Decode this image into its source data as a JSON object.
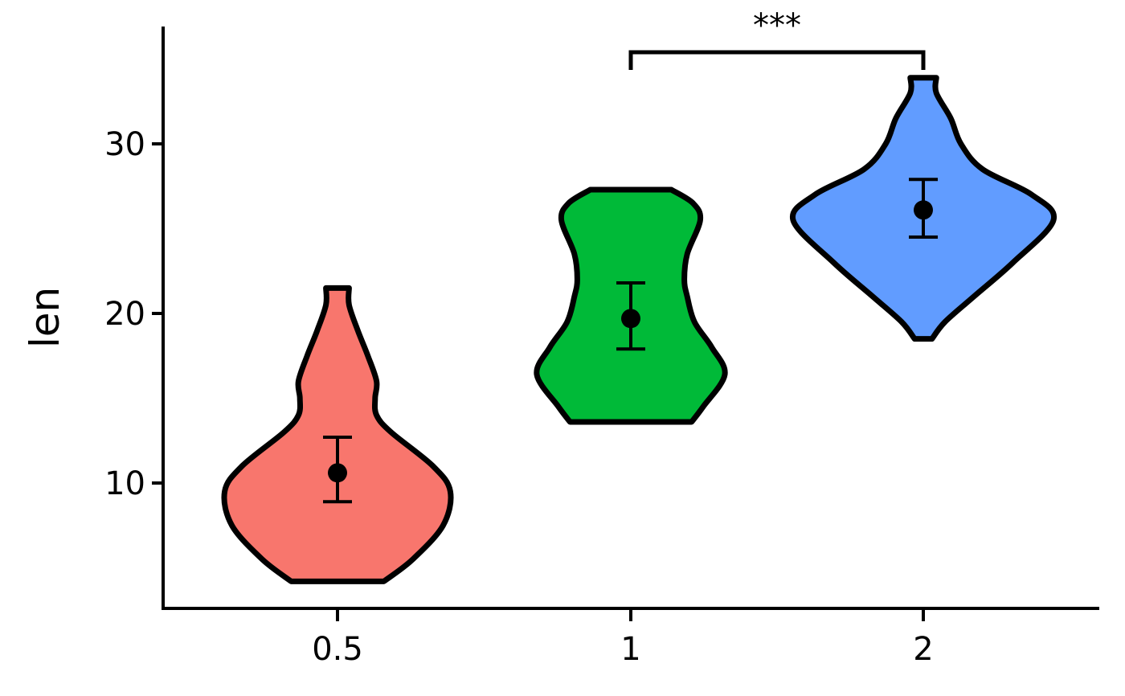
{
  "chart_data": {
    "type": "violin",
    "xlabel": "",
    "ylabel": "len",
    "ylim": [
      2.5,
      37
    ],
    "y_ticks": [
      10,
      20,
      30
    ],
    "categories": [
      "0.5",
      "1",
      "2"
    ],
    "colors": [
      "#F8766D",
      "#00BA38",
      "#619CFF"
    ],
    "groups": [
      {
        "category": "0.5",
        "fill": "#F8766D",
        "min": 4.2,
        "max": 21.5,
        "mean": 10.6,
        "error_low": 8.9,
        "error_high": 12.7,
        "density_profile": [
          [
            4.2,
            0.32
          ],
          [
            5.5,
            0.52
          ],
          [
            7.5,
            0.73
          ],
          [
            9.5,
            0.78
          ],
          [
            11.0,
            0.66
          ],
          [
            13.0,
            0.37
          ],
          [
            14.0,
            0.27
          ],
          [
            15.0,
            0.26
          ],
          [
            16.0,
            0.27
          ],
          [
            17.5,
            0.21
          ],
          [
            19.0,
            0.14
          ],
          [
            20.5,
            0.08
          ],
          [
            21.5,
            0.08
          ]
        ]
      },
      {
        "category": "1",
        "fill": "#00BA38",
        "min": 13.6,
        "max": 27.3,
        "mean": 19.7,
        "error_low": 17.9,
        "error_high": 21.8,
        "density_profile": [
          [
            13.6,
            0.42
          ],
          [
            14.5,
            0.5
          ],
          [
            16.4,
            0.65
          ],
          [
            18.0,
            0.56
          ],
          [
            19.5,
            0.44
          ],
          [
            21.0,
            0.39
          ],
          [
            22.0,
            0.37
          ],
          [
            23.5,
            0.39
          ],
          [
            25.5,
            0.48
          ],
          [
            26.5,
            0.43
          ],
          [
            27.3,
            0.28
          ]
        ]
      },
      {
        "category": "2",
        "fill": "#619CFF",
        "min": 18.5,
        "max": 33.9,
        "mean": 26.1,
        "error_low": 24.5,
        "error_high": 27.9,
        "density_profile": [
          [
            18.5,
            0.06
          ],
          [
            19.5,
            0.15
          ],
          [
            21.0,
            0.35
          ],
          [
            23.0,
            0.62
          ],
          [
            25.5,
            0.9
          ],
          [
            27.0,
            0.75
          ],
          [
            28.5,
            0.41
          ],
          [
            30.0,
            0.26
          ],
          [
            31.5,
            0.19
          ],
          [
            33.0,
            0.09
          ],
          [
            33.9,
            0.09
          ]
        ]
      }
    ],
    "comparisons": [
      {
        "from": "1",
        "to": "2",
        "y": 35.4,
        "label": "***"
      }
    ]
  }
}
